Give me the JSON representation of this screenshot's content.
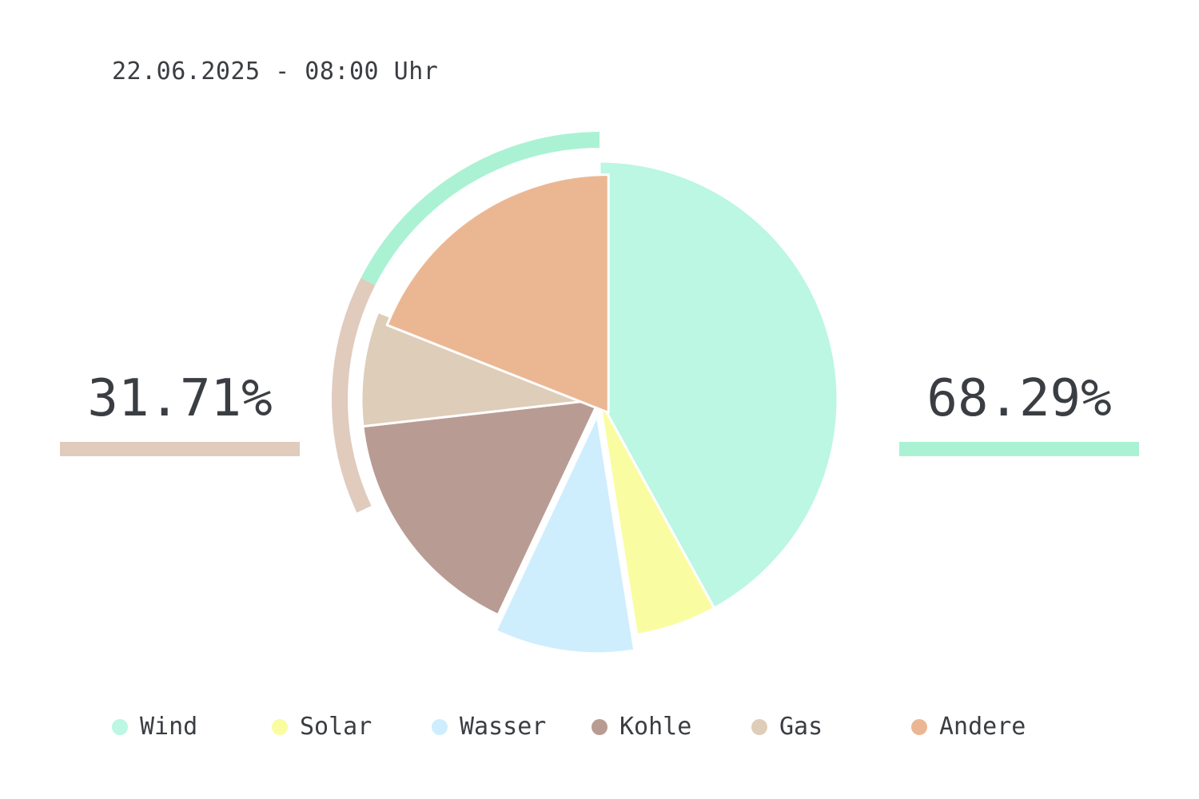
{
  "timestamp": "22.06.2025 - 08:00 Uhr",
  "left_share": {
    "label": "31.71%",
    "color": "#e0cbbd"
  },
  "right_share": {
    "label": "68.29%",
    "color": "#abf2d4"
  },
  "chart_data": {
    "type": "pie",
    "start_angle_deg": 0,
    "direction": "clockwise",
    "slices": [
      {
        "name": "Wind",
        "value": 42.0,
        "color": "#bbf7e2",
        "offset": 0
      },
      {
        "name": "Solar",
        "value": 5.5,
        "color": "#fafca1",
        "offset": 0
      },
      {
        "name": "Wasser",
        "value": 9.5,
        "color": "#cfeefd",
        "offset": 1
      },
      {
        "name": "Kohle",
        "value": 16.2,
        "color": "#b89c93",
        "offset": 0
      },
      {
        "name": "Gas",
        "value": 7.8,
        "color": "#decdb9",
        "offset": 0
      },
      {
        "name": "Andere",
        "value": 19.0,
        "color": "#ebb793",
        "offset": -1
      }
    ],
    "outer_arcs": [
      {
        "name": "renewable-arc",
        "from_deg": 297,
        "to_deg": 360,
        "color": "#abf2d4"
      },
      {
        "name": "fossil-arc",
        "from_deg": 245,
        "to_deg": 297,
        "color": "#e0cbbd"
      }
    ]
  },
  "legend": {
    "items": [
      {
        "label": "Wind",
        "color": "#bbf7e2"
      },
      {
        "label": "Solar",
        "color": "#fafca1"
      },
      {
        "label": "Wasser",
        "color": "#cfeefd"
      },
      {
        "label": "Kohle",
        "color": "#b89c93"
      },
      {
        "label": "Gas",
        "color": "#decdb9"
      },
      {
        "label": "Andere",
        "color": "#ebb793"
      }
    ]
  }
}
